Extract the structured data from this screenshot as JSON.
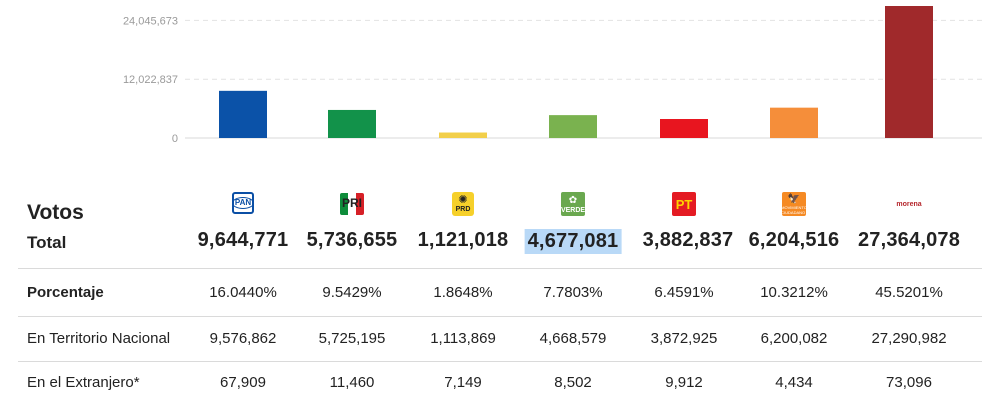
{
  "chart_data": {
    "type": "bar",
    "categories": [
      "PAN",
      "PRI",
      "PRD",
      "PVEM",
      "PT",
      "MC",
      "MORENA"
    ],
    "values": [
      9644771,
      5736655,
      1121018,
      4677081,
      3882837,
      6204516,
      27364078
    ],
    "colors": [
      "#0b52a8",
      "#12924a",
      "#f2cf4a",
      "#7ab24f",
      "#e8151f",
      "#f58e3a",
      "#a0292b"
    ],
    "ytick_labels": [
      "0",
      "12,022,837",
      "24,045,673"
    ],
    "ylim": [
      0,
      28000000
    ],
    "grid": true
  },
  "table": {
    "title": "Votos",
    "total_label": "Total",
    "logos": [
      {
        "icon": "pan-logo",
        "text": "PAN"
      },
      {
        "icon": "pri-logo",
        "text": "PRI"
      },
      {
        "icon": "prd-logo",
        "text": "PRD"
      },
      {
        "icon": "verde-logo",
        "text": "VERDE"
      },
      {
        "icon": "pt-logo",
        "text": "PT"
      },
      {
        "icon": "movimiento-ciudadano-logo",
        "text": "MOVIMIENTO CIUDADANO"
      },
      {
        "icon": "morena-logo",
        "text": "morena"
      }
    ],
    "totals": [
      "9,644,771",
      "5,736,655",
      "1,121,018",
      "4,677,081",
      "3,882,837",
      "6,204,516",
      "27,364,078"
    ],
    "rows": [
      {
        "label": "Porcentaje",
        "values": [
          "16.0440%",
          "9.5429%",
          "1.8648%",
          "7.7803%",
          "6.4591%",
          "10.3212%",
          "45.5201%"
        ]
      },
      {
        "label": "En Territorio Nacional",
        "values": [
          "9,576,862",
          "5,725,195",
          "1,113,869",
          "4,668,579",
          "3,872,925",
          "6,200,082",
          "27,290,982"
        ]
      },
      {
        "label": "En el Extranjero*",
        "values": [
          "67,909",
          "11,460",
          "7,149",
          "8,502",
          "9,912",
          "4,434",
          "73,096"
        ]
      }
    ]
  }
}
